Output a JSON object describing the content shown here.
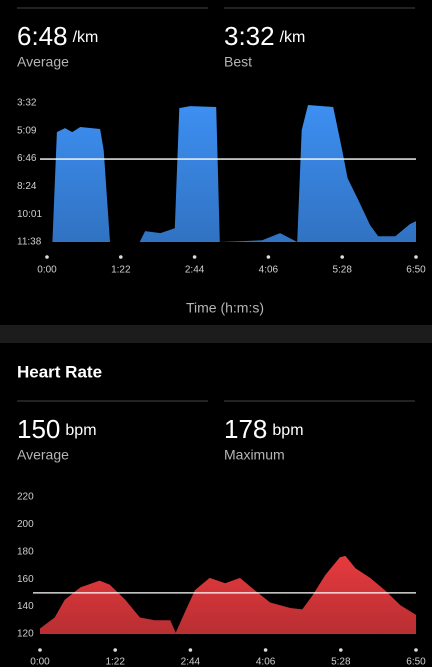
{
  "pace": {
    "average": {
      "value": "6:48",
      "unit": "/km",
      "label": "Average"
    },
    "best": {
      "value": "3:32",
      "unit": "/km",
      "label": "Best"
    }
  },
  "heart_rate": {
    "title": "Heart Rate",
    "average": {
      "value": 150,
      "unit": "bpm",
      "label": "Average"
    },
    "maximum": {
      "value": 178,
      "unit": "bpm",
      "label": "Maximum"
    }
  },
  "chart_data": [
    {
      "type": "area",
      "color": "#3d8ff2",
      "xlabel": "Time (h:m:s)",
      "x": [
        6,
        11,
        20,
        28,
        37,
        59,
        63,
        70,
        103,
        109,
        126,
        142,
        147,
        159,
        188,
        192,
        239,
        259,
        278,
        283,
        290,
        318,
        328,
        334,
        346,
        359,
        368,
        387,
        403,
        410
      ],
      "values": [
        698,
        314,
        300,
        314,
        296,
        303,
        377,
        698,
        698,
        660,
        667,
        650,
        230,
        223,
        226,
        698,
        692,
        667,
        698,
        307,
        219,
        226,
        377,
        475,
        552,
        639,
        678,
        678,
        636,
        625
      ],
      "xlim": [
        0,
        410
      ],
      "xticks": [
        {
          "value": 0,
          "label": "0:00"
        },
        {
          "value": 82,
          "label": "1:22"
        },
        {
          "value": 164,
          "label": "2:44"
        },
        {
          "value": 246,
          "label": "4:06"
        },
        {
          "value": 328,
          "label": "5:28"
        },
        {
          "value": 410,
          "label": "6:50"
        }
      ],
      "ylim": [
        698,
        212
      ],
      "yticks": [
        {
          "value": 212,
          "label": "3:32"
        },
        {
          "value": 309,
          "label": "5:09"
        },
        {
          "value": 406,
          "label": "6:46"
        },
        {
          "value": 504,
          "label": "8:24"
        },
        {
          "value": 601,
          "label": "10:01"
        },
        {
          "value": 698,
          "label": "11:38"
        }
      ],
      "reference_line": 408
    },
    {
      "type": "area",
      "color": "#e63a3e",
      "x": [
        0,
        16,
        27,
        44,
        65,
        76,
        93,
        109,
        125,
        142,
        148,
        158,
        169,
        185,
        202,
        218,
        234,
        251,
        273,
        286,
        297,
        311,
        327,
        333,
        344,
        360,
        376,
        393,
        410
      ],
      "values": [
        124,
        132,
        145,
        154,
        159,
        156,
        145,
        132,
        130,
        130,
        121,
        136,
        152,
        161,
        157,
        161,
        152,
        143,
        139,
        138,
        148,
        163,
        176,
        177,
        168,
        161,
        152,
        141,
        134
      ],
      "xlim": [
        0,
        410
      ],
      "xticks": [
        {
          "value": 0,
          "label": "0:00"
        },
        {
          "value": 82,
          "label": "1:22"
        },
        {
          "value": 164,
          "label": "2:44"
        },
        {
          "value": 246,
          "label": "4:06"
        },
        {
          "value": 328,
          "label": "5:28"
        },
        {
          "value": 410,
          "label": "6:50"
        }
      ],
      "ylim": [
        120,
        220
      ],
      "yticks": [
        120,
        140,
        160,
        180,
        200,
        220
      ],
      "reference_line": 150
    }
  ]
}
